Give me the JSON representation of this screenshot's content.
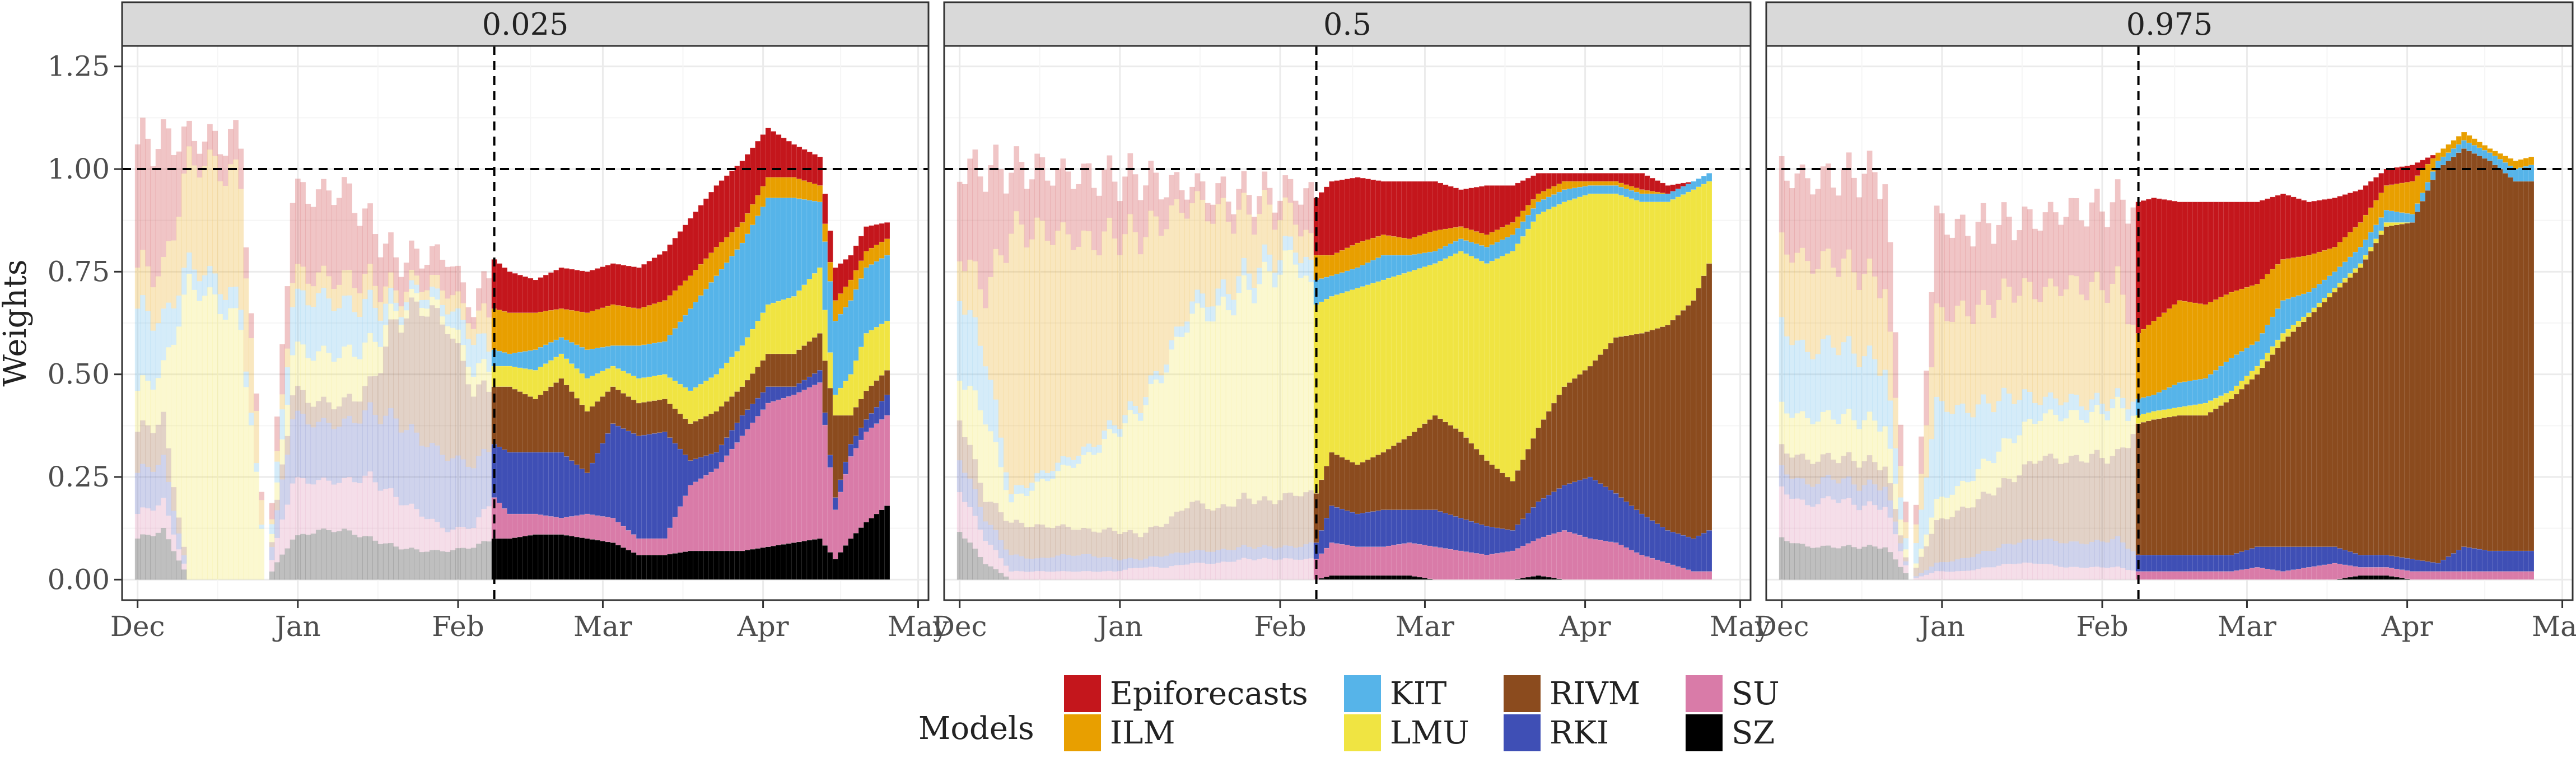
{
  "chart_data": {
    "type": "bar",
    "stacked": true,
    "facets": [
      "0.025",
      "0.5",
      "0.975"
    ],
    "ylabel": "Weights",
    "xlabel": "",
    "ylim": [
      -0.05,
      1.3
    ],
    "yticks": [
      "0.00",
      "0.25",
      "0.50",
      "0.75",
      "1.00",
      "1.25"
    ],
    "ytick_values": [
      0,
      0.25,
      0.5,
      0.75,
      1.0,
      1.25
    ],
    "xticks": [
      "Dec",
      "Jan",
      "Feb",
      "Mar",
      "Apr",
      "May"
    ],
    "x_range_days": [
      -3,
      153
    ],
    "xtick_days": [
      0,
      31,
      62,
      90,
      121,
      151
    ],
    "cutoff_day": 69,
    "reference_y": 1.0,
    "grid": true,
    "legend_position": "bottom",
    "legend": {
      "title": "Models",
      "entries": [
        "Epiforecasts",
        "ILM",
        "KIT",
        "LMU",
        "RIVM",
        "RKI",
        "SU",
        "SZ"
      ]
    },
    "colors": {
      "Epiforecasts": "#c4161c",
      "ILM": "#e89f00",
      "KIT": "#56b4e9",
      "LMU": "#f0e442",
      "RIVM": "#8b4b1e",
      "RKI": "#3f4fb5",
      "SU": "#d97ba8",
      "SZ": "#000000",
      "faded_extra": "#b3b3b3"
    },
    "stack_order_bottom_to_top": [
      "SZ",
      "SU",
      "RKI",
      "RIVM",
      "LMU",
      "KIT",
      "ILM",
      "Epiforecasts"
    ],
    "series": [
      {
        "facet": "0.025",
        "x_days": [
          0,
          5,
          10,
          15,
          20,
          25,
          30,
          35,
          40,
          45,
          50,
          55,
          60,
          65,
          69,
          72,
          77,
          82,
          87,
          92,
          97,
          102,
          107,
          112,
          117,
          122,
          127,
          132,
          135,
          138,
          141,
          145
        ],
        "values": {
          "SZ": [
            0.1,
            0.12,
            0,
            0,
            0,
            0,
            0.1,
            0.12,
            0.12,
            0.1,
            0.08,
            0.07,
            0.07,
            0.08,
            0.1,
            0.1,
            0.11,
            0.11,
            0.1,
            0.09,
            0.06,
            0.06,
            0.07,
            0.07,
            0.07,
            0.08,
            0.09,
            0.1,
            0.05,
            0.1,
            0.14,
            0.18
          ],
          "SU": [
            0.06,
            0.07,
            0,
            0,
            0,
            0,
            0.14,
            0.12,
            0.12,
            0.15,
            0.12,
            0.09,
            0.05,
            0.05,
            0.1,
            0.06,
            0.05,
            0.04,
            0.06,
            0.06,
            0.04,
            0.04,
            0.16,
            0.2,
            0.28,
            0.35,
            0.36,
            0.38,
            0.12,
            0.2,
            0.22,
            0.22
          ],
          "RKI": [
            0.1,
            0.1,
            0,
            0,
            0,
            0,
            0.16,
            0.14,
            0.14,
            0.16,
            0.19,
            0.18,
            0.18,
            0.15,
            0.13,
            0.15,
            0.15,
            0.16,
            0.1,
            0.23,
            0.25,
            0.26,
            0.06,
            0.04,
            0.05,
            0.04,
            0.02,
            0.03,
            0.03,
            0.03,
            0.03,
            0.05
          ],
          "RIVM": [
            0.1,
            0.1,
            0,
            0,
            0,
            0,
            0.06,
            0.05,
            0.05,
            0.06,
            0.24,
            0.33,
            0.32,
            0.18,
            0.14,
            0.16,
            0.13,
            0.18,
            0.15,
            0.09,
            0.08,
            0.08,
            0.09,
            0.1,
            0.07,
            0.08,
            0.08,
            0.09,
            0.2,
            0.07,
            0.07,
            0.06
          ],
          "LMU": [
            0.1,
            0.12,
            0.72,
            0.68,
            0.62,
            0,
            0.1,
            0.12,
            0.12,
            0.1,
            0.02,
            0.02,
            0.02,
            0.05,
            0.05,
            0.05,
            0.07,
            0.06,
            0.08,
            0.05,
            0.06,
            0.06,
            0.08,
            0.09,
            0.1,
            0.12,
            0.14,
            0.16,
            0.05,
            0.1,
            0.14,
            0.12
          ],
          "KIT": [
            0.2,
            0.12,
            0.05,
            0.05,
            0.05,
            0,
            0.12,
            0.14,
            0.12,
            0.1,
            0.02,
            0.02,
            0.03,
            0.08,
            0.04,
            0.03,
            0.05,
            0.04,
            0.07,
            0.05,
            0.08,
            0.08,
            0.2,
            0.24,
            0.25,
            0.26,
            0.24,
            0.16,
            0.18,
            0.18,
            0.16,
            0.16
          ],
          "ILM": [
            0.1,
            0.12,
            0.25,
            0.28,
            0.3,
            0,
            0.06,
            0.05,
            0.06,
            0.06,
            0.03,
            0.02,
            0.04,
            0.04,
            0.1,
            0.1,
            0.09,
            0.07,
            0.09,
            0.1,
            0.09,
            0.1,
            0.08,
            0.07,
            0.05,
            0.05,
            0.05,
            0.04,
            0.05,
            0.05,
            0.04,
            0.04
          ],
          "Epiforecasts": [
            0.3,
            0.32,
            0.06,
            0.06,
            0.1,
            0,
            0.2,
            0.2,
            0.22,
            0.14,
            0.08,
            0.06,
            0.08,
            0.03,
            0.12,
            0.1,
            0.08,
            0.1,
            0.1,
            0.1,
            0.1,
            0.12,
            0.14,
            0.15,
            0.15,
            0.12,
            0.08,
            0.07,
            0.08,
            0.06,
            0.06,
            0.04
          ]
        }
      },
      {
        "facet": "0.5",
        "x_days": [
          0,
          5,
          10,
          15,
          20,
          25,
          30,
          35,
          40,
          45,
          50,
          55,
          60,
          65,
          69,
          72,
          77,
          82,
          87,
          92,
          97,
          102,
          107,
          112,
          117,
          122,
          127,
          132,
          137,
          142,
          145
        ],
        "values": {
          "SZ": [
            0.12,
            0.04,
            0,
            0,
            0,
            0,
            0,
            0,
            0,
            0,
            0,
            0,
            0,
            0,
            0,
            0.01,
            0.01,
            0.01,
            0.01,
            0,
            0,
            0,
            0,
            0.01,
            0,
            0,
            0,
            0,
            0,
            0,
            0
          ],
          "SU": [
            0.1,
            0.06,
            0.02,
            0.02,
            0.02,
            0.02,
            0.02,
            0.03,
            0.03,
            0.04,
            0.04,
            0.05,
            0.05,
            0.05,
            0.05,
            0.08,
            0.07,
            0.07,
            0.08,
            0.08,
            0.07,
            0.06,
            0.07,
            0.09,
            0.12,
            0.1,
            0.09,
            0.06,
            0.04,
            0.02,
            0.02
          ],
          "RKI": [
            0.08,
            0.05,
            0.04,
            0.03,
            0.04,
            0.04,
            0.03,
            0.02,
            0.03,
            0.03,
            0.03,
            0.03,
            0.03,
            0.03,
            0.04,
            0.09,
            0.08,
            0.09,
            0.08,
            0.09,
            0.08,
            0.07,
            0.05,
            0.09,
            0.11,
            0.15,
            0.12,
            0.1,
            0.08,
            0.08,
            0.1
          ],
          "RIVM": [
            0.1,
            0.05,
            0.08,
            0.08,
            0.07,
            0.06,
            0.07,
            0.06,
            0.08,
            0.12,
            0.1,
            0.12,
            0.11,
            0.13,
            0.12,
            0.13,
            0.12,
            0.14,
            0.18,
            0.23,
            0.21,
            0.16,
            0.12,
            0.18,
            0.24,
            0.27,
            0.38,
            0.44,
            0.5,
            0.58,
            0.65
          ],
          "LMU": [
            0.1,
            0.2,
            0.05,
            0.1,
            0.14,
            0.18,
            0.24,
            0.3,
            0.38,
            0.46,
            0.48,
            0.5,
            0.55,
            0.58,
            0.46,
            0.38,
            0.43,
            0.42,
            0.4,
            0.37,
            0.44,
            0.48,
            0.56,
            0.52,
            0.45,
            0.42,
            0.35,
            0.32,
            0.3,
            0.27,
            0.2
          ],
          "KIT": [
            0.2,
            0.15,
            0.02,
            0.02,
            0.02,
            0.02,
            0.02,
            0.02,
            0.02,
            0.03,
            0.04,
            0.04,
            0.04,
            0.03,
            0.06,
            0.05,
            0.05,
            0.06,
            0.04,
            0.03,
            0.03,
            0.04,
            0.04,
            0.03,
            0.03,
            0.02,
            0.02,
            0.02,
            0.02,
            0.02,
            0.02
          ],
          "ILM": [
            0.1,
            0.15,
            0.64,
            0.6,
            0.55,
            0.5,
            0.46,
            0.41,
            0.34,
            0.24,
            0.2,
            0.15,
            0.12,
            0.07,
            0.06,
            0.05,
            0.06,
            0.05,
            0.04,
            0.05,
            0.03,
            0.03,
            0.03,
            0.02,
            0.02,
            0.01,
            0.01,
            0.01,
            0,
            0,
            0
          ],
          "Epiforecasts": [
            0.2,
            0.3,
            0.15,
            0.15,
            0.15,
            0.16,
            0.14,
            0.14,
            0.08,
            0.04,
            0.05,
            0.05,
            0.04,
            0.06,
            0.14,
            0.18,
            0.16,
            0.13,
            0.14,
            0.12,
            0.09,
            0.12,
            0.09,
            0.05,
            0.02,
            0.02,
            0.02,
            0.04,
            0.02,
            0,
            0
          ]
        }
      },
      {
        "facet": "0.975",
        "x_days": [
          0,
          5,
          10,
          15,
          20,
          25,
          30,
          35,
          40,
          45,
          50,
          55,
          60,
          65,
          69,
          72,
          77,
          82,
          87,
          92,
          97,
          102,
          107,
          112,
          117,
          122,
          127,
          132,
          137,
          142,
          145
        ],
        "values": {
          "SZ": [
            0.1,
            0.08,
            0.08,
            0.08,
            0.08,
            0,
            0,
            0,
            0,
            0,
            0,
            0,
            0,
            0,
            0,
            0,
            0,
            0,
            0,
            0,
            0,
            0,
            0,
            0.01,
            0.01,
            0,
            0,
            0,
            0,
            0,
            0
          ],
          "SU": [
            0.12,
            0.1,
            0.12,
            0.1,
            0.1,
            0,
            0.02,
            0.02,
            0.03,
            0.04,
            0.04,
            0.03,
            0.03,
            0.03,
            0.02,
            0.02,
            0.02,
            0.02,
            0.02,
            0.03,
            0.02,
            0.03,
            0.04,
            0.02,
            0.02,
            0.02,
            0.02,
            0.02,
            0.02,
            0.02,
            0.02
          ],
          "RKI": [
            0.05,
            0.05,
            0.05,
            0.05,
            0.05,
            0,
            0.02,
            0.03,
            0.04,
            0.05,
            0.06,
            0.06,
            0.06,
            0.07,
            0.04,
            0.04,
            0.04,
            0.04,
            0.04,
            0.05,
            0.06,
            0.05,
            0.04,
            0.03,
            0.03,
            0.03,
            0.02,
            0.06,
            0.05,
            0.05,
            0.05
          ],
          "RIVM": [
            0.05,
            0.06,
            0.05,
            0.06,
            0.05,
            0,
            0.1,
            0.12,
            0.14,
            0.16,
            0.2,
            0.2,
            0.21,
            0.2,
            0.32,
            0.33,
            0.34,
            0.34,
            0.38,
            0.42,
            0.5,
            0.56,
            0.62,
            0.7,
            0.8,
            0.82,
            0.96,
            0.97,
            0.95,
            0.9,
            0.9
          ],
          "LMU": [
            0.1,
            0.1,
            0.1,
            0.1,
            0.1,
            0,
            0.05,
            0.06,
            0.08,
            0.1,
            0.1,
            0.11,
            0.1,
            0.12,
            0.02,
            0.02,
            0.02,
            0.03,
            0.02,
            0.02,
            0.02,
            0.01,
            0.01,
            0.01,
            0.01,
            0,
            0,
            0,
            0,
            0,
            0
          ],
          "KIT": [
            0.2,
            0.16,
            0.18,
            0.16,
            0.14,
            0,
            0.24,
            0.18,
            0.14,
            0.1,
            0.04,
            0.04,
            0.03,
            0.02,
            0.04,
            0.04,
            0.06,
            0.06,
            0.08,
            0.06,
            0.08,
            0.05,
            0.04,
            0.04,
            0.03,
            0.02,
            0.02,
            0.02,
            0.02,
            0.03,
            0.04
          ],
          "ILM": [
            0.2,
            0.22,
            0.2,
            0.2,
            0.2,
            0,
            0.22,
            0.24,
            0.24,
            0.26,
            0.26,
            0.28,
            0.28,
            0.28,
            0.16,
            0.18,
            0.2,
            0.18,
            0.16,
            0.14,
            0.1,
            0.09,
            0.06,
            0.06,
            0.06,
            0.08,
            0.02,
            0.02,
            0.01,
            0.02,
            0.02
          ],
          "Epiforecasts": [
            0.18,
            0.2,
            0.2,
            0.24,
            0.26,
            0,
            0.23,
            0.2,
            0.2,
            0.16,
            0.18,
            0.18,
            0.19,
            0.2,
            0.32,
            0.3,
            0.24,
            0.25,
            0.22,
            0.2,
            0.16,
            0.13,
            0.12,
            0.08,
            0.04,
            0.04,
            0,
            0,
            0,
            0,
            0
          ]
        }
      }
    ]
  }
}
